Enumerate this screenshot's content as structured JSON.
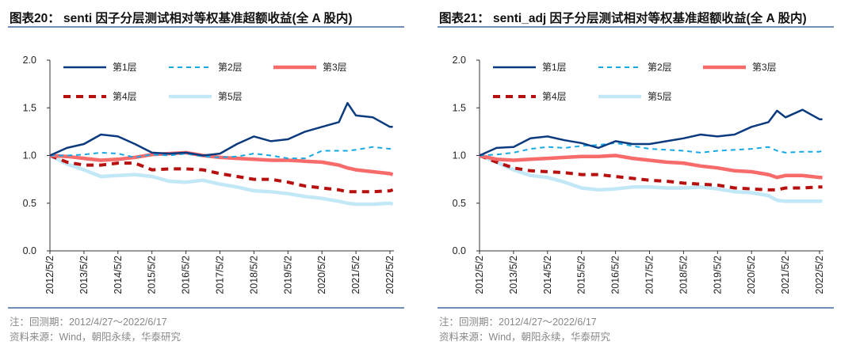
{
  "charts": [
    {
      "title": "图表20： senti 因子分层测试相对等权基准超额收益(全 A 股内)",
      "note": "注：回测期：2012/4/27～2022/6/17",
      "source": "资料来源：Wind，朝阳永续，华泰研究"
    },
    {
      "title": "图表21： senti_adj 因子分层测试相对等权基准超额收益(全 A 股内)",
      "note": "注：回测期：2012/4/27～2022/6/17",
      "source": "资料来源：Wind，朝阳永续，华泰研究"
    }
  ],
  "chart_data": [
    {
      "type": "line",
      "title": "图表20： senti 因子分层测试相对等权基准超额收益(全 A 股内)",
      "xlabel": "",
      "ylabel": "",
      "ylim": [
        0,
        2.0
      ],
      "yticks": [
        "0.0",
        "0.5",
        "1.0",
        "1.5",
        "2.0"
      ],
      "xticks": [
        "2012/5/2",
        "2013/5/2",
        "2014/5/2",
        "2015/5/2",
        "2016/5/2",
        "2017/5/2",
        "2018/5/2",
        "2019/5/2",
        "2020/5/2",
        "2021/5/2",
        "2022/5/2"
      ],
      "grid": false,
      "legend_position": "top",
      "x": [
        "2012-05",
        "2012-11",
        "2013-05",
        "2013-11",
        "2014-05",
        "2014-11",
        "2015-05",
        "2015-11",
        "2016-05",
        "2016-11",
        "2017-05",
        "2017-11",
        "2018-05",
        "2018-11",
        "2019-05",
        "2019-11",
        "2020-05",
        "2020-11",
        "2021-02",
        "2021-05",
        "2021-11",
        "2022-05",
        "2022-06"
      ],
      "series": [
        {
          "name": "第1层",
          "color": "#0b3a7e",
          "style": "solid",
          "values": [
            1.0,
            1.08,
            1.12,
            1.22,
            1.2,
            1.12,
            1.03,
            1.02,
            1.03,
            1.0,
            1.02,
            1.12,
            1.2,
            1.15,
            1.17,
            1.25,
            1.3,
            1.35,
            1.55,
            1.42,
            1.4,
            1.3,
            1.3
          ]
        },
        {
          "name": "第2层",
          "color": "#16a9e6",
          "style": "dashed",
          "values": [
            1.0,
            1.0,
            1.01,
            1.03,
            1.02,
            0.98,
            1.01,
            1.0,
            1.02,
            0.99,
            0.98,
            0.99,
            1.02,
            1.0,
            0.97,
            0.97,
            1.05,
            1.05,
            1.05,
            1.06,
            1.09,
            1.07,
            1.09
          ]
        },
        {
          "name": "第3层",
          "color": "#f86b6b",
          "style": "thick",
          "values": [
            1.0,
            0.99,
            0.97,
            0.95,
            0.96,
            0.98,
            1.01,
            1.02,
            1.03,
            1.0,
            0.98,
            0.97,
            0.96,
            0.95,
            0.95,
            0.94,
            0.93,
            0.9,
            0.87,
            0.85,
            0.83,
            0.81,
            0.8
          ]
        },
        {
          "name": "第4层",
          "color": "#b80f0f",
          "style": "thickdash",
          "values": [
            1.0,
            0.93,
            0.9,
            0.9,
            0.92,
            0.92,
            0.85,
            0.86,
            0.86,
            0.85,
            0.81,
            0.78,
            0.75,
            0.75,
            0.72,
            0.68,
            0.66,
            0.64,
            0.62,
            0.62,
            0.62,
            0.63,
            0.64
          ]
        },
        {
          "name": "第5层",
          "color": "#c2e8f8",
          "style": "thick",
          "values": [
            1.0,
            0.91,
            0.85,
            0.78,
            0.79,
            0.8,
            0.78,
            0.73,
            0.72,
            0.74,
            0.7,
            0.67,
            0.63,
            0.62,
            0.6,
            0.57,
            0.55,
            0.52,
            0.5,
            0.49,
            0.49,
            0.5,
            0.49
          ]
        }
      ]
    },
    {
      "type": "line",
      "title": "图表21： senti_adj 因子分层测试相对等权基准超额收益(全 A 股内)",
      "xlabel": "",
      "ylabel": "",
      "ylim": [
        0,
        2.0
      ],
      "yticks": [
        "0.0",
        "0.5",
        "1.0",
        "1.5",
        "2.0"
      ],
      "xticks": [
        "2012/5/2",
        "2013/5/2",
        "2014/5/2",
        "2015/5/2",
        "2016/5/2",
        "2017/5/2",
        "2018/5/2",
        "2019/5/2",
        "2020/5/2",
        "2021/5/2",
        "2022/5/2"
      ],
      "grid": false,
      "legend_position": "top",
      "x": [
        "2012-05",
        "2012-11",
        "2013-05",
        "2013-11",
        "2014-05",
        "2014-11",
        "2015-05",
        "2015-11",
        "2016-05",
        "2016-11",
        "2017-05",
        "2017-11",
        "2018-05",
        "2018-11",
        "2019-05",
        "2019-11",
        "2020-05",
        "2020-11",
        "2021-02",
        "2021-05",
        "2021-11",
        "2022-05",
        "2022-06"
      ],
      "series": [
        {
          "name": "第1层",
          "color": "#0b3a7e",
          "style": "solid",
          "values": [
            1.0,
            1.08,
            1.09,
            1.18,
            1.2,
            1.16,
            1.13,
            1.08,
            1.15,
            1.12,
            1.12,
            1.15,
            1.18,
            1.22,
            1.2,
            1.22,
            1.3,
            1.35,
            1.47,
            1.4,
            1.48,
            1.38,
            1.38
          ]
        },
        {
          "name": "第2层",
          "color": "#16a9e6",
          "style": "dashed",
          "values": [
            1.0,
            1.01,
            1.03,
            1.07,
            1.09,
            1.08,
            1.1,
            1.11,
            1.13,
            1.1,
            1.07,
            1.06,
            1.05,
            1.03,
            1.05,
            1.06,
            1.07,
            1.09,
            1.05,
            1.03,
            1.04,
            1.04,
            1.05
          ]
        },
        {
          "name": "第3层",
          "color": "#f86b6b",
          "style": "thick",
          "values": [
            1.0,
            0.96,
            0.95,
            0.96,
            0.97,
            0.98,
            0.99,
            0.99,
            1.0,
            0.97,
            0.95,
            0.93,
            0.92,
            0.89,
            0.87,
            0.84,
            0.83,
            0.8,
            0.77,
            0.79,
            0.79,
            0.77,
            0.77
          ]
        },
        {
          "name": "第4层",
          "color": "#b80f0f",
          "style": "thickdash",
          "values": [
            1.0,
            0.93,
            0.87,
            0.84,
            0.83,
            0.82,
            0.8,
            0.8,
            0.78,
            0.76,
            0.74,
            0.73,
            0.71,
            0.7,
            0.69,
            0.66,
            0.65,
            0.64,
            0.64,
            0.66,
            0.66,
            0.67,
            0.67
          ]
        },
        {
          "name": "第5层",
          "color": "#c2e8f8",
          "style": "thick",
          "values": [
            1.0,
            0.93,
            0.85,
            0.79,
            0.77,
            0.72,
            0.66,
            0.64,
            0.65,
            0.67,
            0.67,
            0.66,
            0.66,
            0.67,
            0.65,
            0.62,
            0.61,
            0.58,
            0.53,
            0.52,
            0.52,
            0.52,
            0.52
          ]
        }
      ]
    }
  ]
}
